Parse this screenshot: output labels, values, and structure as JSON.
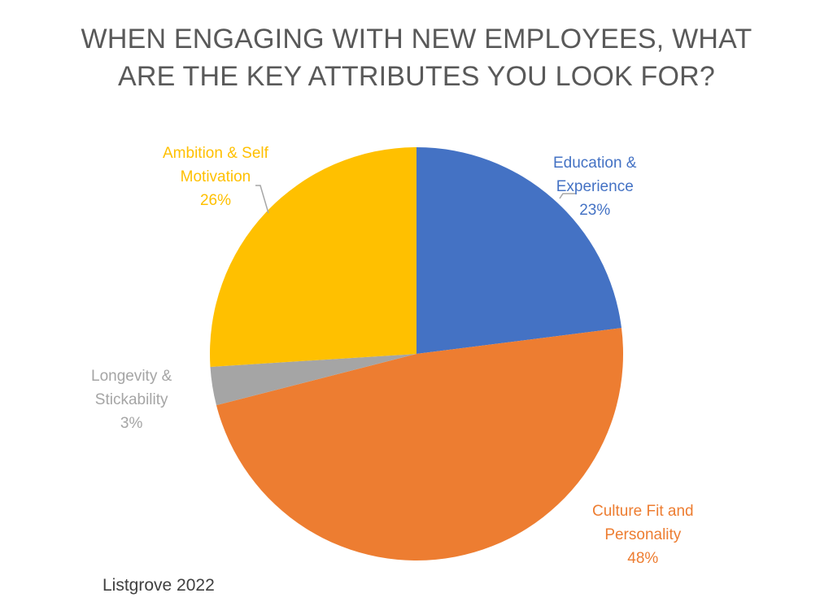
{
  "chart_data": {
    "type": "pie",
    "title_lines": [
      "WHEN ENGAGING WITH NEW EMPLOYEES, WHAT",
      "ARE THE KEY ATTRIBUTES YOU LOOK FOR?"
    ],
    "slices": [
      {
        "label_lines": [
          "Education &",
          "Experience"
        ],
        "percent_label": "23%",
        "value": 23,
        "color": "#4472C4"
      },
      {
        "label_lines": [
          "Culture Fit and",
          "Personality"
        ],
        "percent_label": "48%",
        "value": 48,
        "color": "#ED7D31"
      },
      {
        "label_lines": [
          "Longevity &",
          "Stickability"
        ],
        "percent_label": "3%",
        "value": 3,
        "color": "#A5A5A5"
      },
      {
        "label_lines": [
          "Ambition & Self",
          "Motivation"
        ],
        "percent_label": "26%",
        "value": 26,
        "color": "#FFC000"
      }
    ],
    "start_angle_deg": 0,
    "direction": "clockwise",
    "legend": "none",
    "data_labels": "outside-with-leaders"
  },
  "footer": {
    "source_text": "Listgrove 2022"
  }
}
